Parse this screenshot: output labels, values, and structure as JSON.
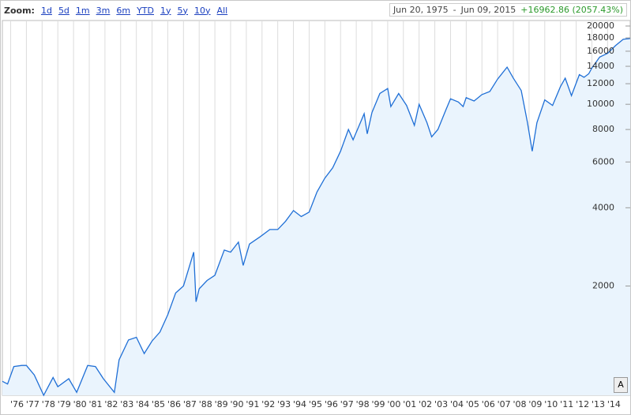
{
  "header": {
    "zoom_label": "Zoom:",
    "zoom_options": [
      "1d",
      "5d",
      "1m",
      "3m",
      "6m",
      "YTD",
      "1y",
      "5y",
      "10y",
      "All"
    ],
    "range_from": "Jun 20, 1975",
    "range_sep": "-",
    "range_to": "Jun 09, 2015",
    "change": "+16962.86 (2057.43%)"
  },
  "button": "A",
  "chart_data": {
    "type": "line",
    "log_scale": true,
    "grid": true,
    "color": "#1f6fd6",
    "fill": "#eaf4fd",
    "x": [
      1975.47,
      1975.8,
      1976.2,
      1976.7,
      1977.0,
      1977.5,
      1978.1,
      1978.7,
      1979.0,
      1979.7,
      1980.2,
      1980.9,
      1981.4,
      1981.9,
      1982.6,
      1982.9,
      1983.5,
      1984.0,
      1984.5,
      1985.0,
      1985.5,
      1986.0,
      1986.5,
      1987.0,
      1987.65,
      1987.8,
      1988.0,
      1988.5,
      1989.0,
      1989.6,
      1990.0,
      1990.5,
      1990.8,
      1991.2,
      1991.9,
      1992.5,
      1993.0,
      1993.5,
      1994.0,
      1994.5,
      1995.0,
      1995.5,
      1996.0,
      1996.5,
      1997.0,
      1997.5,
      1997.8,
      1998.5,
      1998.7,
      1999.0,
      1999.5,
      2000.0,
      2000.2,
      2000.7,
      2001.2,
      2001.7,
      2002.0,
      2002.5,
      2002.8,
      2003.2,
      2003.7,
      2004.0,
      2004.5,
      2004.8,
      2005.0,
      2005.5,
      2006.0,
      2006.5,
      2007.0,
      2007.6,
      2008.0,
      2008.5,
      2008.9,
      2009.2,
      2009.5,
      2010.0,
      2010.5,
      2011.0,
      2011.3,
      2011.7,
      2012.2,
      2012.5,
      2012.8,
      2013.0,
      2013.5,
      2014.0,
      2014.5,
      2015.0,
      2015.44
    ],
    "values": [
      860,
      840,
      980,
      990,
      990,
      910,
      760,
      890,
      820,
      880,
      780,
      990,
      980,
      880,
      780,
      1040,
      1240,
      1270,
      1100,
      1230,
      1330,
      1550,
      1880,
      2000,
      2700,
      1740,
      1950,
      2100,
      2200,
      2750,
      2700,
      2950,
      2400,
      2900,
      3100,
      3300,
      3300,
      3550,
      3900,
      3700,
      3850,
      4600,
      5200,
      5700,
      6600,
      8000,
      7300,
      9200,
      7700,
      9300,
      11000,
      11500,
      9800,
      11000,
      9900,
      8300,
      10000,
      8500,
      7500,
      8000,
      9500,
      10500,
      10200,
      9800,
      10600,
      10300,
      10900,
      11200,
      12500,
      13900,
      12600,
      11300,
      8500,
      6600,
      8500,
      10400,
      9900,
      11700,
      12600,
      10800,
      13000,
      12700,
      13100,
      13800,
      15200,
      15700,
      16800,
      17800,
      17900
    ],
    "xlim": [
      1975.47,
      2015.44
    ],
    "ylim": [
      760,
      21000
    ],
    "yticks": [
      2000,
      4000,
      6000,
      8000,
      10000,
      12000,
      14000,
      16000,
      18000,
      20000
    ],
    "xticks": [
      {
        "value": 1976,
        "label": "'76"
      },
      {
        "value": 1977,
        "label": "'77"
      },
      {
        "value": 1978,
        "label": "'78"
      },
      {
        "value": 1979,
        "label": "'79"
      },
      {
        "value": 1980,
        "label": "'80"
      },
      {
        "value": 1981,
        "label": "'81"
      },
      {
        "value": 1982,
        "label": "'82"
      },
      {
        "value": 1983,
        "label": "'83"
      },
      {
        "value": 1984,
        "label": "'84"
      },
      {
        "value": 1985,
        "label": "'85"
      },
      {
        "value": 1986,
        "label": "'86"
      },
      {
        "value": 1987,
        "label": "'87"
      },
      {
        "value": 1988,
        "label": "'88"
      },
      {
        "value": 1989,
        "label": "'89"
      },
      {
        "value": 1990,
        "label": "'90"
      },
      {
        "value": 1991,
        "label": "'91"
      },
      {
        "value": 1992,
        "label": "'92"
      },
      {
        "value": 1993,
        "label": "'93"
      },
      {
        "value": 1994,
        "label": "'94"
      },
      {
        "value": 1995,
        "label": "'95"
      },
      {
        "value": 1996,
        "label": "'96"
      },
      {
        "value": 1997,
        "label": "'97"
      },
      {
        "value": 1998,
        "label": "'98"
      },
      {
        "value": 1999,
        "label": "'99"
      },
      {
        "value": 2000,
        "label": "'00"
      },
      {
        "value": 2001,
        "label": "'01"
      },
      {
        "value": 2002,
        "label": "'02"
      },
      {
        "value": 2003,
        "label": "'03"
      },
      {
        "value": 2004,
        "label": "'04"
      },
      {
        "value": 2005,
        "label": "'05"
      },
      {
        "value": 2006,
        "label": "'06"
      },
      {
        "value": 2007,
        "label": "'07"
      },
      {
        "value": 2008,
        "label": "'08"
      },
      {
        "value": 2009,
        "label": "'09"
      },
      {
        "value": 2010,
        "label": "'10"
      },
      {
        "value": 2011,
        "label": "'11"
      },
      {
        "value": 2012,
        "label": "'12"
      },
      {
        "value": 2013,
        "label": "'13"
      },
      {
        "value": 2014,
        "label": "'14"
      }
    ]
  }
}
